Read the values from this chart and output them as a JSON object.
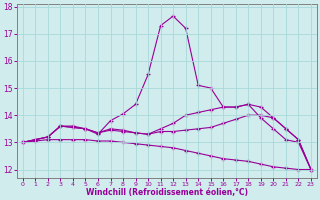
{
  "x": [
    0,
    1,
    2,
    3,
    4,
    5,
    6,
    7,
    8,
    9,
    10,
    11,
    12,
    13,
    14,
    15,
    16,
    17,
    18,
    19,
    20,
    21,
    22,
    23
  ],
  "line1": [
    13.0,
    13.1,
    13.2,
    13.6,
    13.6,
    13.5,
    13.3,
    13.8,
    14.05,
    14.4,
    15.5,
    17.3,
    17.65,
    17.2,
    15.1,
    15.0,
    14.3,
    14.3,
    14.4,
    13.9,
    13.5,
    13.1,
    13.0,
    12.0
  ],
  "line2": [
    13.0,
    13.1,
    13.2,
    13.6,
    13.55,
    13.5,
    13.35,
    13.5,
    13.45,
    13.35,
    13.3,
    13.5,
    13.7,
    14.0,
    14.1,
    14.2,
    14.3,
    14.3,
    14.4,
    14.3,
    13.9,
    13.5,
    13.1,
    12.0
  ],
  "line3": [
    13.0,
    13.1,
    13.2,
    13.6,
    13.55,
    13.5,
    13.35,
    13.45,
    13.4,
    13.35,
    13.3,
    13.4,
    13.4,
    13.45,
    13.5,
    13.55,
    13.7,
    13.85,
    14.0,
    14.0,
    13.9,
    13.5,
    13.1,
    12.0
  ],
  "line4": [
    13.0,
    13.05,
    13.1,
    13.1,
    13.1,
    13.1,
    13.05,
    13.05,
    13.0,
    12.95,
    12.9,
    12.85,
    12.8,
    12.7,
    12.6,
    12.5,
    12.4,
    12.35,
    12.3,
    12.2,
    12.1,
    12.05,
    12.0,
    12.0
  ],
  "line_color": "#990099",
  "bg_color": "#d0ecec",
  "grid_color": "#a8d8d8",
  "xlabel": "Windchill (Refroidissement éolien,°C)",
  "ylim": [
    11.7,
    18.1
  ],
  "xlim": [
    -0.5,
    23.5
  ],
  "yticks": [
    12,
    13,
    14,
    15,
    16,
    17,
    18
  ],
  "xticks": [
    0,
    1,
    2,
    3,
    4,
    5,
    6,
    7,
    8,
    9,
    10,
    11,
    12,
    13,
    14,
    15,
    16,
    17,
    18,
    19,
    20,
    21,
    22,
    23
  ]
}
